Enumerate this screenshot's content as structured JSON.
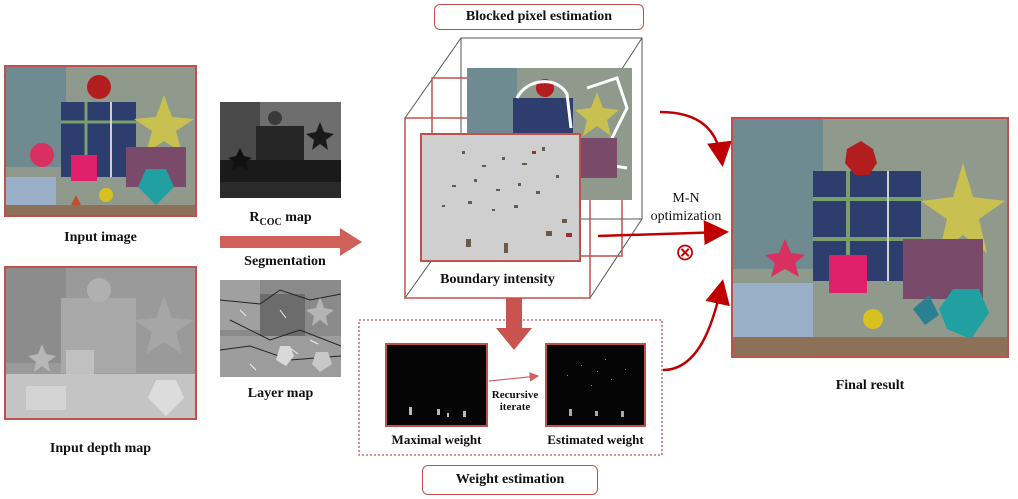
{
  "labels": {
    "input_image": "Input image",
    "input_depth_map": "Input depth map",
    "rcoc_prefix": "R",
    "rcoc_sub": "COC",
    "rcoc_suffix": " map",
    "segmentation": "Segmentation",
    "layer_map": "Layer map",
    "blocked_pixel_estimation": "Blocked pixel estimation",
    "boundary_intensity": "Boundary intensity",
    "mn_line1": "M-N",
    "mn_line2": "optimization",
    "otimes_symbol": "⊗",
    "final_result": "Final result",
    "weight_estimation": "Weight estimation",
    "maximal_weight": "Maximal weight",
    "estimated_weight": "Estimated weight",
    "recursive_line1": "Recursive",
    "recursive_line2": "iterate"
  },
  "colors": {
    "accent": "#c0504d",
    "arrow_dark": "#c00000",
    "segmentation_arrow": "#d0605a",
    "cube_edge": "#555555"
  }
}
